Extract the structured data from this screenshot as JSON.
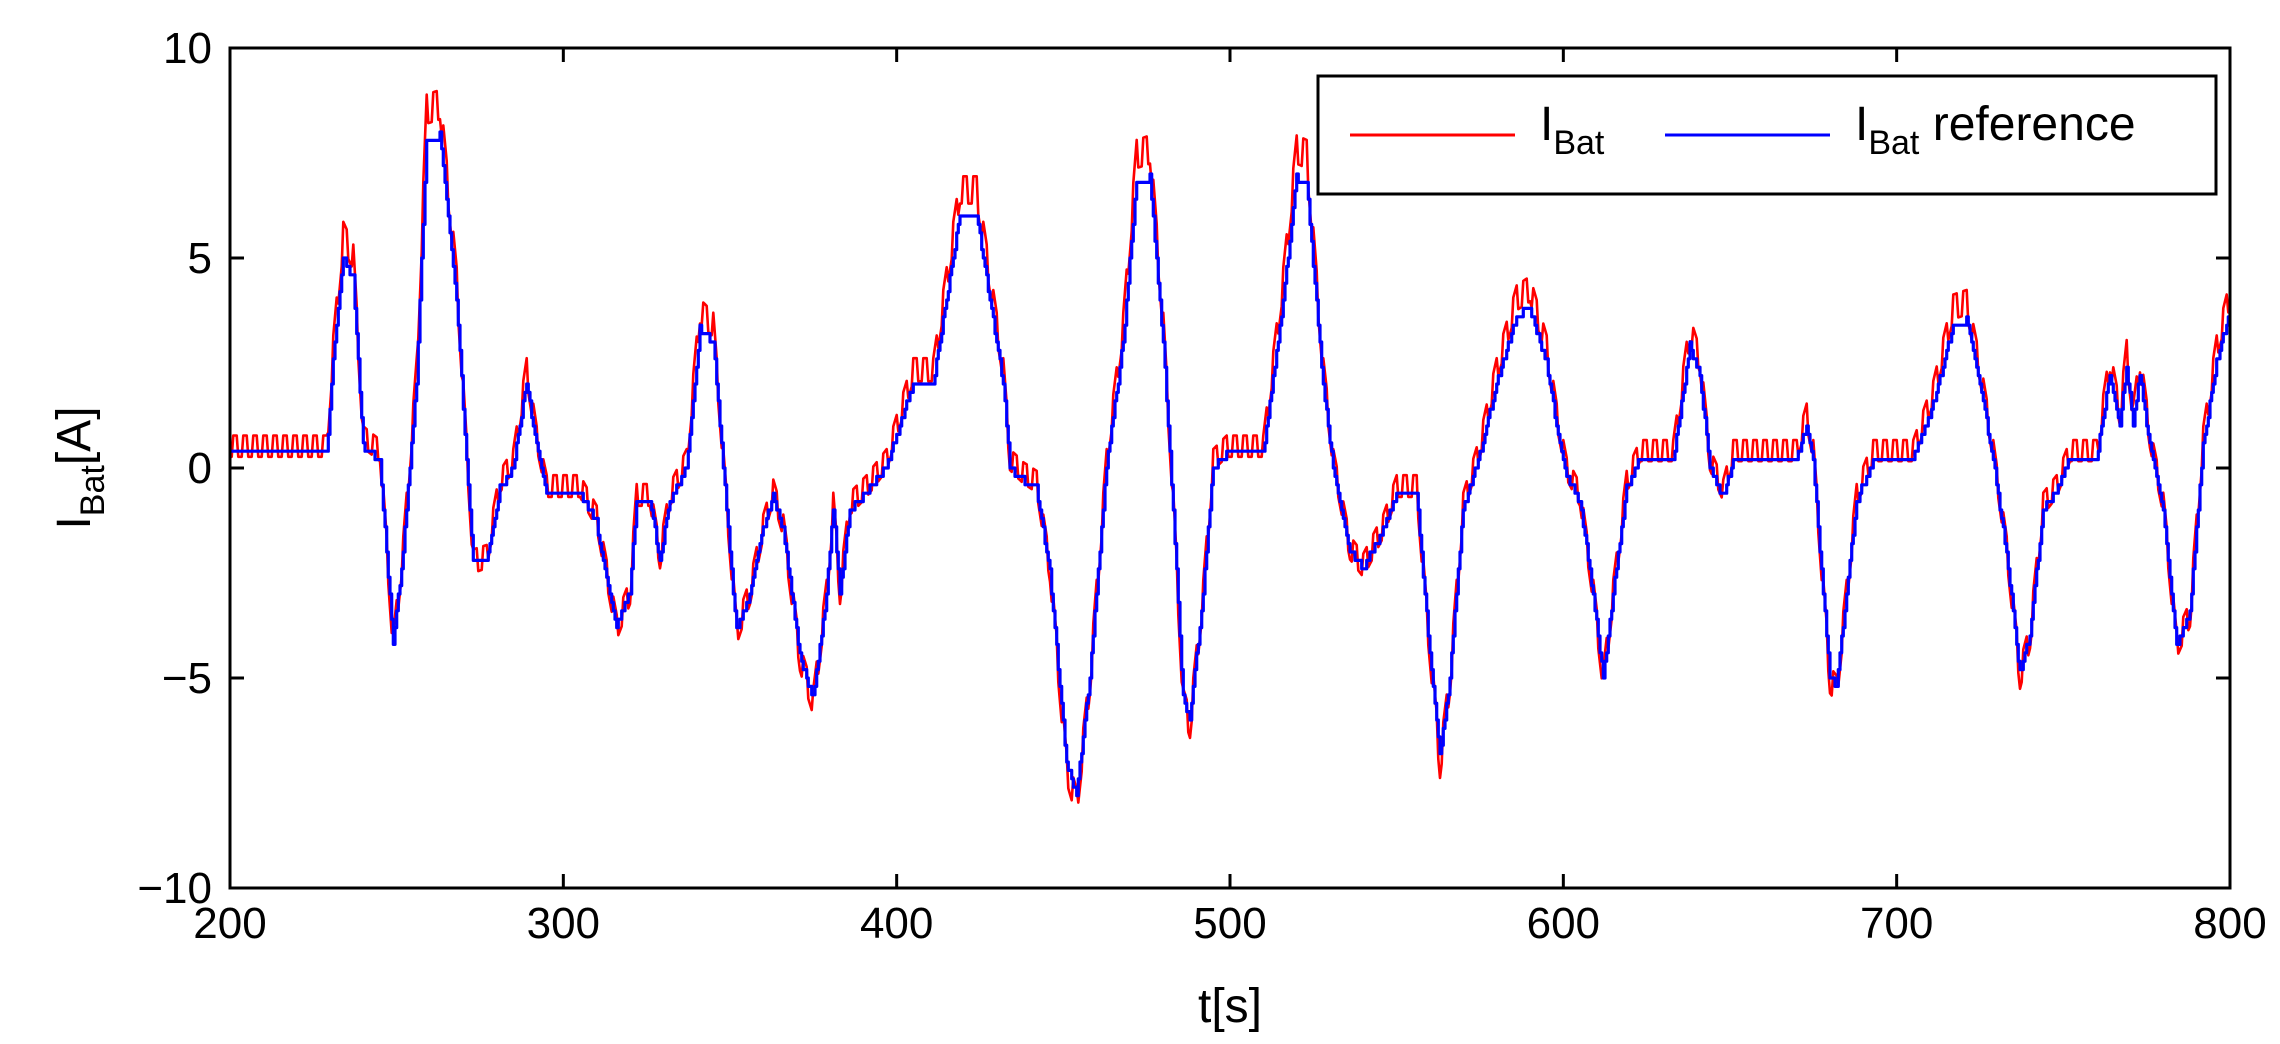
{
  "chart_data": {
    "type": "line",
    "xlabel": "t[s]",
    "ylabel": {
      "main": "I",
      "sub": "Bat",
      "suffix": "[A]"
    },
    "xlim": [
      200,
      800
    ],
    "ylim": [
      -10,
      10
    ],
    "xticks": [
      200,
      300,
      400,
      500,
      600,
      700,
      800
    ],
    "yticks": [
      10,
      5,
      0,
      -5,
      -10
    ],
    "ytick_labels": [
      "10",
      "5",
      "0",
      "−5",
      "−10"
    ],
    "grid": false,
    "legend_position": "top-right",
    "series": [
      {
        "name": "I_Bat",
        "label_main": "I",
        "label_sub": "Bat",
        "label_suffix": "",
        "color": "#ff0000",
        "noise": true
      },
      {
        "name": "I_Bat reference",
        "label_main": "I",
        "label_sub": "Bat",
        "label_suffix": " reference",
        "color": "#0000ff",
        "noise": false
      }
    ],
    "reference_points": [
      [
        200,
        0.3
      ],
      [
        229,
        0.3
      ],
      [
        231,
        2.5
      ],
      [
        234,
        5.0
      ],
      [
        237,
        4.5
      ],
      [
        240,
        0.5
      ],
      [
        245,
        0.2
      ],
      [
        249,
        -4.2
      ],
      [
        252,
        -2.0
      ],
      [
        256,
        2.0
      ],
      [
        259,
        7.8
      ],
      [
        263,
        7.9
      ],
      [
        268,
        4.0
      ],
      [
        273,
        -2.3
      ],
      [
        277,
        -2.2
      ],
      [
        281,
        -0.5
      ],
      [
        285,
        0.0
      ],
      [
        289,
        2.0
      ],
      [
        292,
        0.5
      ],
      [
        295,
        -0.6
      ],
      [
        305,
        -0.6
      ],
      [
        310,
        -1.3
      ],
      [
        316,
        -3.8
      ],
      [
        320,
        -3.0
      ],
      [
        322,
        -0.8
      ],
      [
        326,
        -0.8
      ],
      [
        329,
        -2.2
      ],
      [
        332,
        -0.8
      ],
      [
        337,
        0.0
      ],
      [
        341,
        3.3
      ],
      [
        345,
        3.0
      ],
      [
        349,
        -1.0
      ],
      [
        352,
        -3.9
      ],
      [
        356,
        -3.0
      ],
      [
        360,
        -1.5
      ],
      [
        363,
        -0.7
      ],
      [
        366,
        -1.5
      ],
      [
        371,
        -4.5
      ],
      [
        375,
        -5.5
      ],
      [
        379,
        -3.0
      ],
      [
        381,
        -1.0
      ],
      [
        383,
        -3.0
      ],
      [
        386,
        -1.0
      ],
      [
        391,
        -0.6
      ],
      [
        397,
        0.0
      ],
      [
        403,
        1.5
      ],
      [
        405,
        2.0
      ],
      [
        411,
        2.0
      ],
      [
        416,
        4.5
      ],
      [
        419,
        6.0
      ],
      [
        424,
        6.0
      ],
      [
        428,
        4.0
      ],
      [
        432,
        2.0
      ],
      [
        434,
        0.0
      ],
      [
        438,
        -0.3
      ],
      [
        442,
        -0.5
      ],
      [
        446,
        -2.5
      ],
      [
        451,
        -7.0
      ],
      [
        454,
        -7.8
      ],
      [
        458,
        -5.0
      ],
      [
        463,
        0.0
      ],
      [
        468,
        3.0
      ],
      [
        472,
        6.8
      ],
      [
        476,
        6.9
      ],
      [
        480,
        3.0
      ],
      [
        483,
        -1.0
      ],
      [
        486,
        -5.5
      ],
      [
        488,
        -6.0
      ],
      [
        492,
        -3.0
      ],
      [
        495,
        0.0
      ],
      [
        499,
        0.3
      ],
      [
        510,
        0.3
      ],
      [
        516,
        4.0
      ],
      [
        520,
        6.9
      ],
      [
        523,
        6.8
      ],
      [
        528,
        2.0
      ],
      [
        531,
        0.0
      ],
      [
        536,
        -2.0
      ],
      [
        540,
        -2.4
      ],
      [
        546,
        -1.5
      ],
      [
        550,
        -0.6
      ],
      [
        556,
        -0.6
      ],
      [
        559,
        -3.5
      ],
      [
        563,
        -6.9
      ],
      [
        566,
        -5.0
      ],
      [
        570,
        -1.0
      ],
      [
        575,
        0.3
      ],
      [
        580,
        2.0
      ],
      [
        586,
        3.6
      ],
      [
        590,
        3.8
      ],
      [
        595,
        2.5
      ],
      [
        598,
        1.0
      ],
      [
        601,
        -0.2
      ],
      [
        605,
        -0.8
      ],
      [
        609,
        -3.0
      ],
      [
        612,
        -5.0
      ],
      [
        615,
        -3.0
      ],
      [
        619,
        -0.5
      ],
      [
        623,
        0.2
      ],
      [
        633,
        0.2
      ],
      [
        638,
        2.9
      ],
      [
        641,
        2.2
      ],
      [
        644,
        0.0
      ],
      [
        648,
        -0.7
      ],
      [
        651,
        0.2
      ],
      [
        670,
        0.2
      ],
      [
        673,
        1.0
      ],
      [
        675,
        0.2
      ],
      [
        678,
        -3.0
      ],
      [
        680,
        -5.0
      ],
      [
        682,
        -5.2
      ],
      [
        685,
        -3.0
      ],
      [
        688,
        -0.8
      ],
      [
        693,
        0.2
      ],
      [
        705,
        0.2
      ],
      [
        711,
        1.5
      ],
      [
        717,
        3.4
      ],
      [
        721,
        3.5
      ],
      [
        725,
        2.0
      ],
      [
        729,
        0.2
      ],
      [
        733,
        -2.0
      ],
      [
        737,
        -4.9
      ],
      [
        740,
        -4.0
      ],
      [
        744,
        -1.0
      ],
      [
        748,
        -0.6
      ],
      [
        752,
        0.2
      ],
      [
        760,
        0.2
      ],
      [
        764,
        2.2
      ],
      [
        767,
        1.0
      ],
      [
        769,
        2.4
      ],
      [
        771,
        1.0
      ],
      [
        773,
        2.2
      ],
      [
        776,
        0.5
      ],
      [
        780,
        -1.0
      ],
      [
        784,
        -4.2
      ],
      [
        788,
        -3.5
      ],
      [
        792,
        0.5
      ],
      [
        796,
        2.5
      ],
      [
        800,
        3.7
      ]
    ]
  }
}
